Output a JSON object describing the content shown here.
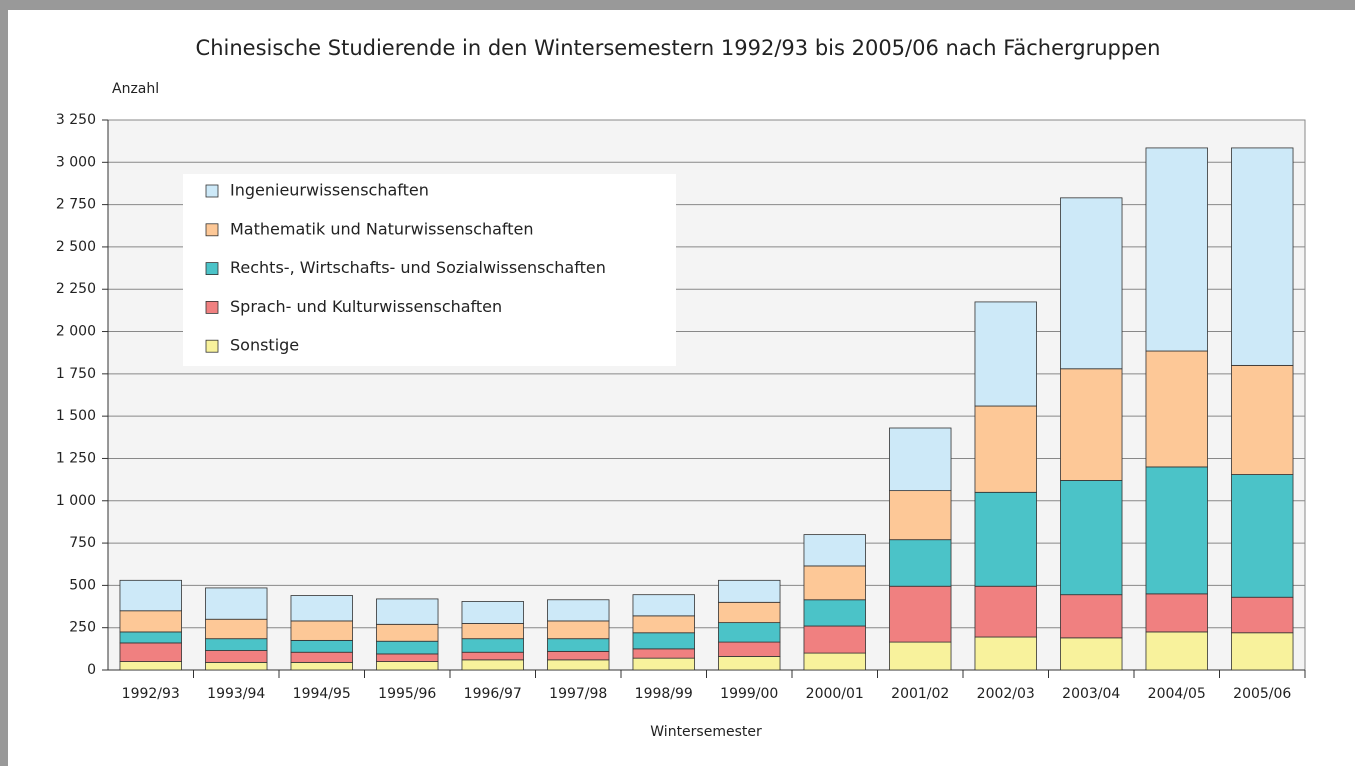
{
  "chart_data": {
    "type": "stacked_bar",
    "title": "Chinesische Studierende in den Wintersemestern 1992/93 bis 2005/06 nach Fächergruppen",
    "y_label": "Anzahl",
    "x_label": "Wintersemester",
    "categories": [
      "1992/93",
      "1993/94",
      "1994/95",
      "1995/96",
      "1996/97",
      "1997/98",
      "1998/99",
      "1999/00",
      "2000/01",
      "2001/02",
      "2002/03",
      "2003/04",
      "2004/05",
      "2005/06"
    ],
    "series": [
      {
        "name": "Sonstige",
        "color": "#f8f29c",
        "values": [
          50,
          45,
          45,
          50,
          60,
          60,
          70,
          80,
          100,
          165,
          195,
          190,
          225,
          220
        ]
      },
      {
        "name": "Sprach- und Kulturwissenschaften",
        "color": "#f08080",
        "values": [
          110,
          70,
          60,
          45,
          45,
          50,
          55,
          85,
          160,
          330,
          300,
          255,
          225,
          210
        ]
      },
      {
        "name": "Rechts-, Wirtschafts- und Sozialwissenschaften",
        "color": "#4bc3c8",
        "values": [
          65,
          70,
          70,
          75,
          80,
          75,
          95,
          115,
          155,
          275,
          555,
          675,
          750,
          725
        ]
      },
      {
        "name": "Mathematik und Naturwissenschaften",
        "color": "#fdc897",
        "values": [
          125,
          115,
          115,
          100,
          90,
          105,
          100,
          120,
          200,
          290,
          510,
          660,
          685,
          645
        ]
      },
      {
        "name": "Ingenieurwissenschaften",
        "color": "#cde9f8",
        "values": [
          180,
          185,
          150,
          150,
          130,
          125,
          125,
          130,
          185,
          370,
          615,
          1010,
          1200,
          1285
        ]
      }
    ],
    "ylim": [
      0,
      3250
    ],
    "yticks": [
      0,
      250,
      500,
      750,
      {
        "value": 1000,
        "label": "1 000"
      },
      {
        "value": 1250,
        "label": "1 250"
      },
      {
        "value": 1500,
        "label": "1 500"
      },
      {
        "value": 1750,
        "label": "1 750"
      },
      {
        "value": 2000,
        "label": "2 000"
      },
      {
        "value": 2250,
        "label": "2 250"
      },
      {
        "value": 2500,
        "label": "2 500"
      },
      {
        "value": 2750,
        "label": "2 750"
      },
      {
        "value": 3000,
        "label": "3 000"
      },
      {
        "value": 3250,
        "label": "3 250"
      }
    ],
    "grid": true,
    "legend": "upper left"
  }
}
